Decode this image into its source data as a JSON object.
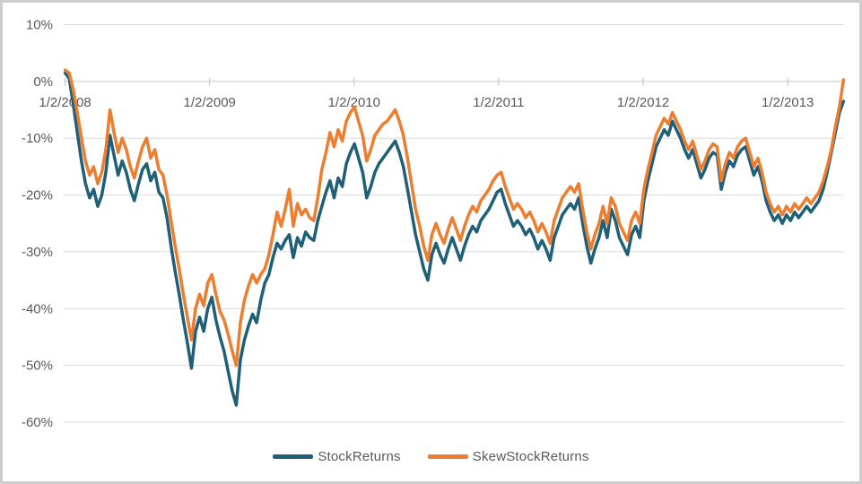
{
  "chart_data": {
    "type": "line",
    "title": "",
    "xlabel": "",
    "ylabel": "",
    "grid": "horizontal-only",
    "legend_position": "bottom-center",
    "colors": {
      "grid_line": "#dadada",
      "axis_line": "#c9c9c9",
      "tick_mark": "#bfbfbf",
      "label_text": "#595959",
      "background": "#ffffff"
    },
    "y_axis": {
      "tick_labels": [
        "10%",
        "0%",
        "-10%",
        "-20%",
        "-30%",
        "-40%",
        "-50%",
        "-60%"
      ],
      "tick_values": [
        10,
        0,
        -10,
        -20,
        -30,
        -40,
        -50,
        -60
      ],
      "ylim": [
        -60,
        10
      ],
      "unit": "percent"
    },
    "x_axis": {
      "tick_labels": [
        "1/2/2008",
        "1/2/2009",
        "1/2/2010",
        "1/2/2011",
        "1/2/2012",
        "1/2/2013"
      ],
      "tick_positions_years": [
        2008,
        2009,
        2010,
        2011,
        2012,
        2013
      ],
      "xlim_years": [
        2007.99,
        2013.39
      ]
    },
    "x_start_year": 2008.0,
    "x_step_years": 0.0282,
    "series": [
      {
        "name": "StockReturns",
        "color": "#1f6078",
        "values": [
          1.5,
          0.5,
          -4,
          -9,
          -14,
          -18,
          -20.5,
          -19,
          -22,
          -20,
          -16,
          -9.5,
          -13,
          -16.5,
          -14,
          -16,
          -19,
          -21,
          -18,
          -15.5,
          -14.5,
          -17.5,
          -16,
          -19.5,
          -20.5,
          -24,
          -29,
          -33.5,
          -37.5,
          -42,
          -46,
          -50.5,
          -44,
          -41.5,
          -44,
          -40,
          -38,
          -42,
          -45,
          -47.5,
          -51,
          -54.5,
          -57,
          -49,
          -45.5,
          -43,
          -41,
          -42.5,
          -38.5,
          -35.5,
          -34,
          -31,
          -28.5,
          -29.5,
          -28,
          -27,
          -31,
          -27.5,
          -29,
          -26.5,
          -27.5,
          -28,
          -24.5,
          -22,
          -19.5,
          -17.5,
          -20.5,
          -17,
          -18.5,
          -14.5,
          -12.5,
          -11,
          -13.5,
          -16,
          -20.5,
          -18.5,
          -16,
          -14.5,
          -13.5,
          -12.5,
          -11.5,
          -10.5,
          -12.5,
          -15,
          -19,
          -23,
          -27,
          -30,
          -33,
          -35,
          -30.5,
          -28.5,
          -30.5,
          -32,
          -29.5,
          -27.5,
          -29.5,
          -31.5,
          -29,
          -27,
          -25.5,
          -26.5,
          -24.5,
          -23.5,
          -22.5,
          -21,
          -19.5,
          -19,
          -21.5,
          -23.5,
          -25.5,
          -24.5,
          -25.5,
          -27,
          -26,
          -27.5,
          -29.5,
          -28,
          -29.5,
          -31.5,
          -27.5,
          -25.5,
          -23.5,
          -22.5,
          -21.5,
          -22.5,
          -20.5,
          -25,
          -29,
          -32,
          -29.5,
          -27.5,
          -24.5,
          -27.5,
          -22.5,
          -24.5,
          -27.5,
          -29,
          -30.5,
          -27,
          -25.5,
          -27.5,
          -21,
          -17.5,
          -14.5,
          -11.5,
          -10,
          -8.5,
          -9.5,
          -7,
          -8.5,
          -10,
          -12,
          -13.5,
          -12,
          -14.5,
          -17,
          -15.5,
          -13.5,
          -12.5,
          -13,
          -19,
          -16,
          -14,
          -15,
          -13,
          -12,
          -11.5,
          -14,
          -16.5,
          -15,
          -17.5,
          -21,
          -23,
          -24.5,
          -23.5,
          -25,
          -23.5,
          -24.5,
          -23,
          -24,
          -23,
          -22,
          -23,
          -22,
          -21,
          -19,
          -16,
          -12.5,
          -9,
          -5.5,
          -3.5
        ]
      },
      {
        "name": "SkewStockReturns",
        "color": "#ed7d2f",
        "values": [
          2,
          1.5,
          -1.5,
          -5.5,
          -10,
          -14,
          -16.5,
          -15,
          -18,
          -16,
          -12,
          -5,
          -9,
          -12.5,
          -10,
          -12,
          -15,
          -17,
          -14,
          -11.5,
          -10,
          -13.5,
          -12,
          -15.5,
          -16.5,
          -20,
          -24.5,
          -29,
          -33,
          -37.5,
          -41.5,
          -45.5,
          -40,
          -37.5,
          -39.5,
          -35.5,
          -34,
          -37.5,
          -40.5,
          -42,
          -44.5,
          -47.5,
          -50,
          -42.5,
          -38.5,
          -36,
          -34,
          -35.5,
          -34,
          -33,
          -30.5,
          -27,
          -23,
          -25.5,
          -22.5,
          -19,
          -25.5,
          -21.5,
          -23.5,
          -22.5,
          -24,
          -24.5,
          -20.5,
          -15.5,
          -12.5,
          -9,
          -11.5,
          -8.5,
          -10.5,
          -7,
          -5.5,
          -4.5,
          -7,
          -9.5,
          -14,
          -12,
          -9.5,
          -8.5,
          -7.5,
          -7,
          -6,
          -5,
          -7,
          -9.5,
          -13.5,
          -18,
          -22.5,
          -25.5,
          -29,
          -31.5,
          -27,
          -25,
          -27,
          -28.5,
          -26,
          -24,
          -26,
          -28,
          -25.5,
          -23.5,
          -22,
          -23,
          -21,
          -20,
          -19,
          -17.5,
          -16.5,
          -16,
          -18.5,
          -20.5,
          -22.5,
          -21.5,
          -22.5,
          -24,
          -23,
          -24.5,
          -26.5,
          -25,
          -26.5,
          -28.5,
          -24.5,
          -22.5,
          -20.5,
          -19.5,
          -18.5,
          -19.5,
          -18,
          -22.5,
          -26.5,
          -29.5,
          -27,
          -25,
          -22,
          -25,
          -20.5,
          -22,
          -25,
          -26.5,
          -28,
          -24.5,
          -23,
          -25,
          -19,
          -15.5,
          -12.5,
          -9.5,
          -8,
          -6.5,
          -7.5,
          -5.5,
          -7,
          -8.5,
          -10.5,
          -12,
          -10.5,
          -13,
          -15.5,
          -14,
          -12,
          -11,
          -11.5,
          -17.5,
          -14.5,
          -12.5,
          -13.5,
          -11.5,
          -10.5,
          -10,
          -12.5,
          -15,
          -13.5,
          -16,
          -19.5,
          -21.5,
          -23,
          -22,
          -23.5,
          -22,
          -23,
          -21.5,
          -22.5,
          -21.5,
          -20.5,
          -21.5,
          -20.5,
          -19.5,
          -17.5,
          -15,
          -12,
          -8,
          -4.5,
          0.3
        ]
      }
    ]
  },
  "legend": {
    "items": [
      {
        "label": "StockReturns",
        "color": "#1f6078"
      },
      {
        "label": "SkewStockReturns",
        "color": "#ed7d2f"
      }
    ]
  }
}
